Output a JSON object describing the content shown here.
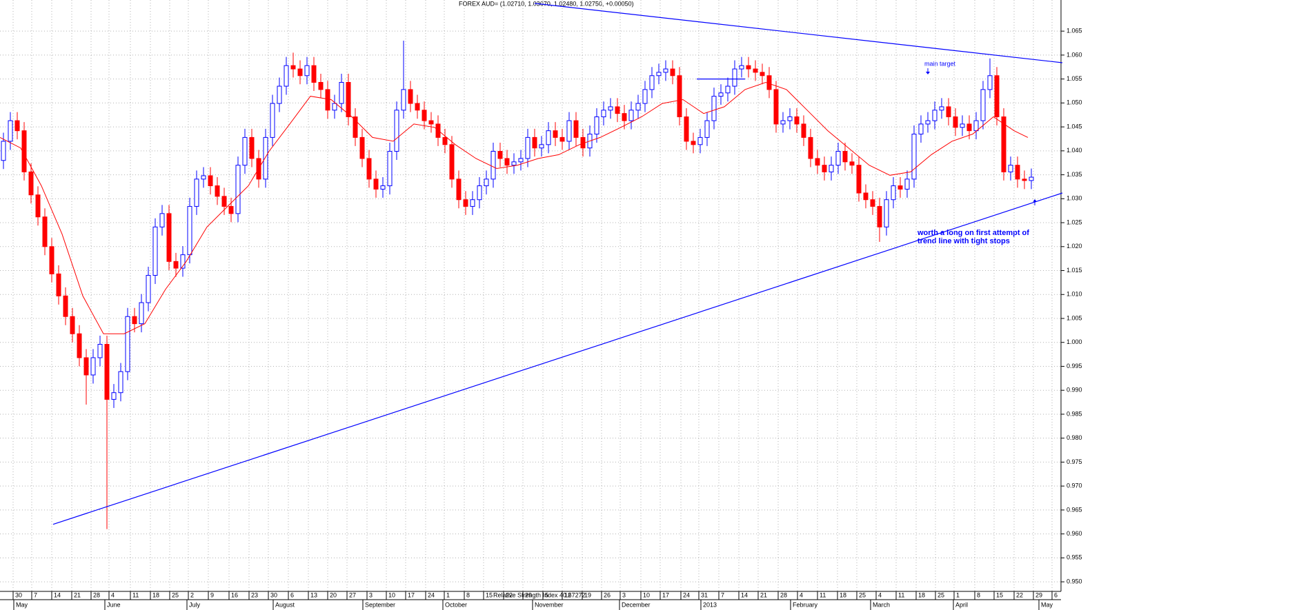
{
  "chart_data": {
    "type": "candlestick",
    "title": "FOREX AUD= (1.02710, 1.03070, 1.02480, 1.02750, +0.00050)",
    "footer": "Relative Strength Index 40.67272",
    "up_color": "#0000ff",
    "down_color": "#ff0000",
    "grid": true,
    "xlim": [
      0,
      154
    ],
    "ylim": [
      0.948,
      1.0715
    ],
    "yticks": [
      1.065,
      {
        "value": 1.06,
        "label": "1.060"
      },
      1.055,
      {
        "value": 1.05,
        "label": "1.050"
      },
      1.045,
      {
        "value": 1.04,
        "label": "1.040"
      },
      1.035,
      {
        "value": 1.03,
        "label": "1.030"
      },
      1.025,
      {
        "value": 1.02,
        "label": "1.020"
      },
      1.015,
      {
        "value": 1.01,
        "label": "1.010"
      },
      1.005,
      {
        "value": 1,
        "label": "1.000"
      },
      0.995,
      {
        "value": 0.99,
        "label": "0.990"
      },
      0.985,
      {
        "value": 0.98,
        "label": "0.980"
      },
      0.975,
      {
        "value": 0.97,
        "label": "0.970"
      },
      0.965,
      {
        "value": 0.96,
        "label": "0.960"
      },
      0.955,
      {
        "value": 0.95,
        "label": "0.950"
      }
    ],
    "xticks": [
      {
        "value": 1.9,
        "label": "30"
      },
      {
        "value": 4.6,
        "label": "7"
      },
      {
        "value": 7.5,
        "label": "14"
      },
      {
        "value": 10.4,
        "label": "21"
      },
      {
        "value": 13.2,
        "label": "28"
      },
      {
        "value": 15.8,
        "label": "4"
      },
      {
        "value": 18.9,
        "label": "11"
      },
      {
        "value": 21.8,
        "label": "18"
      },
      {
        "value": 24.6,
        "label": "25"
      },
      {
        "value": 27.3,
        "label": "2"
      },
      {
        "value": 30.2,
        "label": "9"
      },
      {
        "value": 33.2,
        "label": "16"
      },
      {
        "value": 36.1,
        "label": "23"
      },
      {
        "value": 38.9,
        "label": "30"
      },
      {
        "value": 41.8,
        "label": "6"
      },
      {
        "value": 44.7,
        "label": "13"
      },
      {
        "value": 47.5,
        "label": "20"
      },
      {
        "value": 50.3,
        "label": "27"
      },
      {
        "value": 53.2,
        "label": "3"
      },
      {
        "value": 56,
        "label": "10"
      },
      {
        "value": 58.8,
        "label": "17"
      },
      {
        "value": 61.7,
        "label": "24"
      },
      {
        "value": 64.4,
        "label": "1"
      },
      {
        "value": 67.3,
        "label": "8"
      },
      {
        "value": 70.1,
        "label": "15"
      },
      {
        "value": 73,
        "label": "22"
      },
      {
        "value": 75.8,
        "label": "29"
      },
      {
        "value": 78.7,
        "label": "5"
      },
      {
        "value": 81.5,
        "label": "12"
      },
      {
        "value": 84.4,
        "label": "19"
      },
      {
        "value": 87.2,
        "label": "26"
      },
      {
        "value": 89.9,
        "label": "3"
      },
      {
        "value": 92.9,
        "label": "10"
      },
      {
        "value": 95.7,
        "label": "17"
      },
      {
        "value": 98.7,
        "label": "24"
      },
      {
        "value": 101.3,
        "label": "31"
      },
      {
        "value": 104.2,
        "label": "7"
      },
      {
        "value": 107.1,
        "label": "14"
      },
      {
        "value": 109.9,
        "label": "21"
      },
      {
        "value": 112.8,
        "label": "28"
      },
      {
        "value": 115.6,
        "label": "4"
      },
      {
        "value": 118.5,
        "label": "11"
      },
      {
        "value": 121.4,
        "label": "18"
      },
      {
        "value": 124.2,
        "label": "25"
      },
      {
        "value": 127,
        "label": "4"
      },
      {
        "value": 129.9,
        "label": "11"
      },
      {
        "value": 132.8,
        "label": "18"
      },
      {
        "value": 135.6,
        "label": "25"
      },
      {
        "value": 138.3,
        "label": "1"
      },
      {
        "value": 141.3,
        "label": "8"
      },
      {
        "value": 144.1,
        "label": "15"
      },
      {
        "value": 147,
        "label": "22"
      },
      {
        "value": 149.8,
        "label": "29"
      },
      {
        "value": 152.5,
        "label": "6"
      }
    ],
    "month_ticks": [
      {
        "value": 2.0,
        "label": "May"
      },
      {
        "value": 15.2,
        "label": "June"
      },
      {
        "value": 27.1,
        "label": "July"
      },
      {
        "value": 39.6,
        "label": "August"
      },
      {
        "value": 52.6,
        "label": "September"
      },
      {
        "value": 64.2,
        "label": "October"
      },
      {
        "value": 77.2,
        "label": "November"
      },
      {
        "value": 89.8,
        "label": "December"
      },
      {
        "value": 101.6,
        "label": "2013"
      },
      {
        "value": 114.6,
        "label": "February"
      },
      {
        "value": 126.2,
        "label": "March"
      },
      {
        "value": 138.2,
        "label": "April"
      },
      {
        "value": 150.6,
        "label": "May"
      }
    ],
    "candles": {
      "open": [
        1.038,
        1.042,
        1.0463,
        1.0442,
        1.0356,
        1.0308,
        1.0262,
        1.02,
        1.0143,
        1.0097,
        1.0054,
        1.0018,
        0.9968,
        0.9932,
        0.9968,
        0.9996,
        0.9881,
        0.9895,
        0.9939,
        1.0054,
        1.0039,
        1.0083,
        1.014,
        1.0241,
        1.0269,
        1.0169,
        1.0155,
        1.0183,
        1.0284,
        1.0341,
        1.0348,
        1.0327,
        1.0305,
        1.0284,
        1.0269,
        1.037,
        1.0428,
        1.0384,
        1.0341,
        1.0428,
        1.0499,
        1.0535,
        1.0578,
        1.0571,
        1.0557,
        1.0578,
        1.0543,
        1.0528,
        1.0485,
        1.0499,
        1.0543,
        1.0471,
        1.0428,
        1.0384,
        1.0341,
        1.032,
        1.0327,
        1.0399,
        1.0485,
        1.0528,
        1.0499,
        1.0485,
        1.0463,
        1.0456,
        1.0428,
        1.0413,
        1.0341,
        1.0298,
        1.0284,
        1.0298,
        1.0327,
        1.0341,
        1.0399,
        1.0384,
        1.037,
        1.0377,
        1.0384,
        1.0428,
        1.0406,
        1.0413,
        1.0442,
        1.0428,
        1.042,
        1.0463,
        1.0428,
        1.0406,
        1.0435,
        1.0471,
        1.0485,
        1.0492,
        1.0478,
        1.0463,
        1.0485,
        1.0499,
        1.0528,
        1.0557,
        1.0564,
        1.0571,
        1.0557,
        1.0471,
        1.042,
        1.0413,
        1.0428,
        1.0463,
        1.0514,
        1.0521,
        1.0535,
        1.0571,
        1.0578,
        1.0571,
        1.0564,
        1.0557,
        1.0528,
        1.0456,
        1.0463,
        1.0471,
        1.0456,
        1.0428,
        1.0384,
        1.037,
        1.0356,
        1.037,
        1.0399,
        1.0377,
        1.037,
        1.0312,
        1.0298,
        1.0284,
        1.0241,
        1.0298,
        1.0327,
        1.032,
        1.0341,
        1.0435,
        1.0456,
        1.0463,
        1.0485,
        1.0492,
        1.0471,
        1.0449,
        1.0456,
        1.0442,
        1.0463,
        1.0528,
        1.0557,
        1.0471,
        1.0356,
        1.037,
        1.0341,
        1.0338
      ],
      "high": [
        1.0438,
        1.0481,
        1.0481,
        1.046,
        1.0374,
        1.0326,
        1.028,
        1.0218,
        1.0161,
        1.0115,
        1.0072,
        1.0036,
        0.9986,
        0.9986,
        1.0014,
        1.0014,
        0.9913,
        0.9957,
        1.0072,
        1.0072,
        1.0101,
        1.0158,
        1.0259,
        1.0287,
        1.0287,
        1.0187,
        1.0201,
        1.0302,
        1.0359,
        1.0366,
        1.0366,
        1.0345,
        1.0323,
        1.0302,
        1.0388,
        1.0446,
        1.0446,
        1.0402,
        1.0446,
        1.0517,
        1.0553,
        1.0596,
        1.0605,
        1.0589,
        1.0596,
        1.0596,
        1.0561,
        1.0546,
        1.0517,
        1.0561,
        1.0561,
        1.0489,
        1.0446,
        1.0402,
        1.0359,
        1.0345,
        1.0417,
        1.0503,
        1.063,
        1.0546,
        1.0517,
        1.0503,
        1.0481,
        1.0474,
        1.0446,
        1.0431,
        1.0359,
        1.0316,
        1.0316,
        1.0345,
        1.0359,
        1.0417,
        1.0417,
        1.0402,
        1.0395,
        1.0402,
        1.0446,
        1.0446,
        1.0431,
        1.046,
        1.046,
        1.0446,
        1.0481,
        1.0481,
        1.0446,
        1.0453,
        1.0489,
        1.0503,
        1.051,
        1.051,
        1.0496,
        1.0503,
        1.0517,
        1.0546,
        1.0575,
        1.0582,
        1.0589,
        1.0589,
        1.0575,
        1.0489,
        1.0438,
        1.0446,
        1.0481,
        1.0532,
        1.0539,
        1.0553,
        1.0589,
        1.0596,
        1.0596,
        1.0589,
        1.0582,
        1.0575,
        1.0546,
        1.0481,
        1.0489,
        1.0489,
        1.0474,
        1.0446,
        1.0402,
        1.0388,
        1.0388,
        1.0417,
        1.0417,
        1.0395,
        1.0388,
        1.033,
        1.0316,
        1.0302,
        1.0316,
        1.0345,
        1.0345,
        1.0359,
        1.0453,
        1.0474,
        1.0481,
        1.0503,
        1.051,
        1.051,
        1.0489,
        1.0474,
        1.0474,
        1.0481,
        1.0546,
        1.0593,
        1.0575,
        1.0489,
        1.0388,
        1.0388,
        1.0359,
        1.0363
      ],
      "low": [
        1.0362,
        1.0402,
        1.0424,
        1.0338,
        1.029,
        1.0244,
        1.0182,
        1.0125,
        1.0079,
        1.0036,
        1.0,
        0.995,
        0.987,
        0.9914,
        0.995,
        0.961,
        0.9863,
        0.9877,
        0.9921,
        1.0021,
        1.0021,
        1.0065,
        1.0122,
        1.0223,
        1.0151,
        1.0137,
        1.0137,
        1.0165,
        1.0266,
        1.0323,
        1.0309,
        1.0287,
        1.0266,
        1.0251,
        1.0251,
        1.0352,
        1.0366,
        1.0323,
        1.0323,
        1.041,
        1.0481,
        1.0517,
        1.0553,
        1.0539,
        1.0539,
        1.0525,
        1.051,
        1.0467,
        1.0467,
        1.0481,
        1.0453,
        1.041,
        1.0366,
        1.0323,
        1.0302,
        1.0302,
        1.0309,
        1.0381,
        1.0467,
        1.0481,
        1.0467,
        1.0445,
        1.0438,
        1.041,
        1.0395,
        1.0323,
        1.028,
        1.0266,
        1.0266,
        1.028,
        1.0309,
        1.0323,
        1.0366,
        1.0352,
        1.0352,
        1.0359,
        1.0366,
        1.0388,
        1.0388,
        1.0395,
        1.041,
        1.0402,
        1.0402,
        1.041,
        1.0388,
        1.0388,
        1.0417,
        1.0453,
        1.0467,
        1.046,
        1.0445,
        1.0445,
        1.0467,
        1.0481,
        1.051,
        1.0539,
        1.0546,
        1.0539,
        1.0453,
        1.0402,
        1.0395,
        1.0395,
        1.041,
        1.0445,
        1.0496,
        1.0503,
        1.0517,
        1.0553,
        1.0553,
        1.0546,
        1.0539,
        1.051,
        1.0438,
        1.0438,
        1.0445,
        1.0438,
        1.041,
        1.0366,
        1.0352,
        1.0338,
        1.0338,
        1.0352,
        1.0359,
        1.0352,
        1.0294,
        1.028,
        1.0266,
        1.021,
        1.0223,
        1.028,
        1.0302,
        1.0302,
        1.0323,
        1.0417,
        1.0438,
        1.0445,
        1.0467,
        1.0453,
        1.0431,
        1.0431,
        1.0424,
        1.0424,
        1.0445,
        1.051,
        1.0453,
        1.0338,
        1.0338,
        1.0323,
        1.032,
        1.032
      ],
      "close": [
        1.042,
        1.0463,
        1.0442,
        1.0356,
        1.0308,
        1.0262,
        1.02,
        1.0143,
        1.0097,
        1.0054,
        1.0018,
        0.9968,
        0.9932,
        0.9968,
        0.9996,
        0.9881,
        0.9895,
        0.9939,
        1.0054,
        1.0039,
        1.0083,
        1.014,
        1.0241,
        1.0269,
        1.0169,
        1.0155,
        1.0183,
        1.0284,
        1.0341,
        1.0348,
        1.0327,
        1.0305,
        1.0284,
        1.0269,
        1.037,
        1.0428,
        1.0384,
        1.0341,
        1.0428,
        1.0499,
        1.0535,
        1.0578,
        1.0571,
        1.0557,
        1.0578,
        1.0543,
        1.0528,
        1.0485,
        1.0499,
        1.0543,
        1.0471,
        1.0428,
        1.0384,
        1.0341,
        1.032,
        1.0327,
        1.0399,
        1.0485,
        1.0528,
        1.0499,
        1.0485,
        1.0463,
        1.0456,
        1.0428,
        1.0413,
        1.0341,
        1.0298,
        1.0284,
        1.0298,
        1.0327,
        1.0341,
        1.0399,
        1.0384,
        1.037,
        1.0377,
        1.0384,
        1.0428,
        1.0406,
        1.0413,
        1.0442,
        1.0428,
        1.042,
        1.0463,
        1.0428,
        1.0406,
        1.0435,
        1.0471,
        1.0485,
        1.0492,
        1.0478,
        1.0463,
        1.0485,
        1.0499,
        1.0528,
        1.0557,
        1.0564,
        1.0571,
        1.0557,
        1.0471,
        1.042,
        1.0413,
        1.0428,
        1.0463,
        1.0514,
        1.0521,
        1.0535,
        1.0571,
        1.0578,
        1.0571,
        1.0564,
        1.0557,
        1.0528,
        1.0456,
        1.0463,
        1.0471,
        1.0456,
        1.0428,
        1.0384,
        1.037,
        1.0356,
        1.037,
        1.0399,
        1.0377,
        1.037,
        1.0312,
        1.0298,
        1.0284,
        1.0241,
        1.0298,
        1.0327,
        1.032,
        1.0341,
        1.0435,
        1.0456,
        1.0463,
        1.0485,
        1.0492,
        1.0471,
        1.0449,
        1.0456,
        1.0442,
        1.0463,
        1.0528,
        1.0557,
        1.0471,
        1.0356,
        1.037,
        1.0341,
        1.0338,
        1.0345
      ]
    },
    "ma": {
      "color": "#ff0000",
      "x": [
        0,
        3,
        6,
        9,
        12,
        15,
        18,
        21,
        24,
        27,
        30,
        33,
        36,
        39,
        42,
        45,
        48,
        51,
        54,
        57,
        60,
        63,
        66,
        69,
        72,
        75,
        78,
        81,
        84,
        87,
        90,
        93,
        96,
        99,
        102,
        105,
        108,
        111,
        114,
        117,
        120,
        123,
        126,
        129,
        132,
        135,
        138,
        141,
        144,
        147,
        149
      ],
      "values": [
        1.0428,
        1.0406,
        1.0327,
        1.0226,
        1.0097,
        1.0018,
        1.0018,
        1.0039,
        1.0111,
        1.0169,
        1.0241,
        1.0284,
        1.0327,
        1.0399,
        1.0456,
        1.0514,
        1.0507,
        1.0471,
        1.0428,
        1.042,
        1.0456,
        1.0449,
        1.0413,
        1.0384,
        1.0363,
        1.037,
        1.0384,
        1.0392,
        1.0413,
        1.0428,
        1.0449,
        1.0471,
        1.0499,
        1.0507,
        1.0478,
        1.0492,
        1.0528,
        1.0543,
        1.0528,
        1.0485,
        1.0442,
        1.0406,
        1.037,
        1.0349,
        1.0356,
        1.0392,
        1.042,
        1.0435,
        1.0471,
        1.0442,
        1.0428
      ]
    },
    "lines": [
      {
        "color": "#0000ff",
        "x": [
          77.5,
          154
        ],
        "values": [
          1.0708,
          1.0584
        ]
      },
      {
        "color": "#0000ff",
        "x": [
          7.7,
          154
        ],
        "values": [
          0.962,
          1.0312
        ]
      },
      {
        "color": "#0000ff",
        "x": [
          101,
          108
        ],
        "values": [
          1.055,
          1.055
        ]
      }
    ],
    "annotations": [
      {
        "text": [
          "main target"
        ]
      },
      {
        "text": [
          "worth a long on first attempt of",
          "trend line with tight stops"
        ]
      }
    ]
  }
}
